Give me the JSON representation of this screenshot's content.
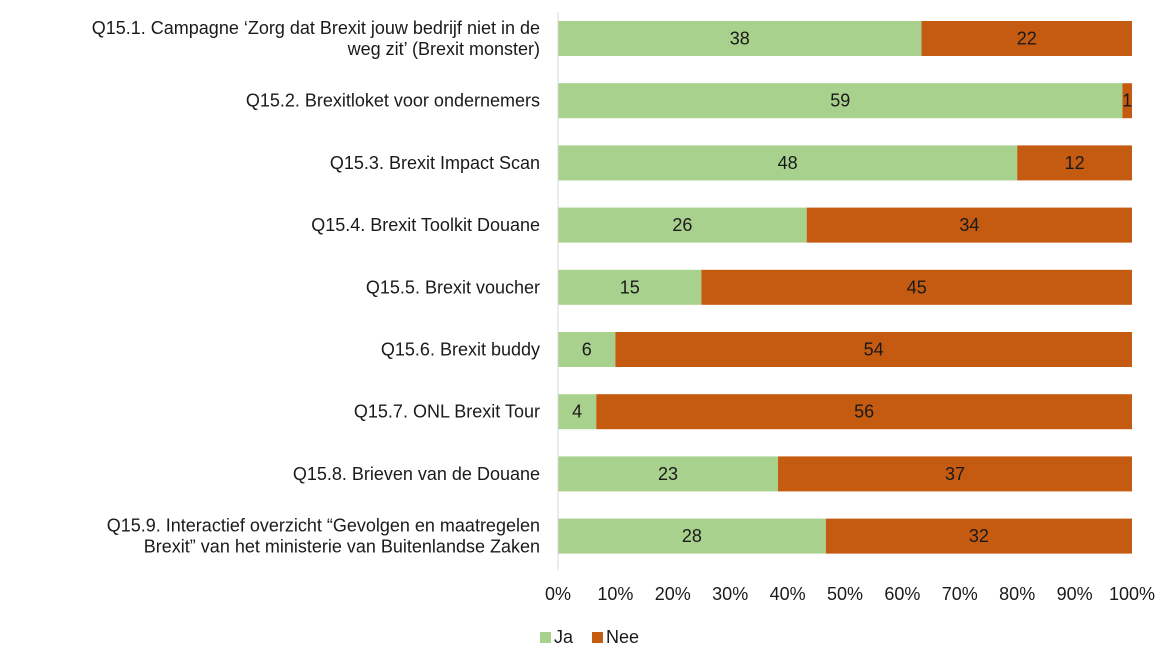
{
  "chart_data": {
    "type": "bar",
    "orientation": "horizontal",
    "stacked": "percent",
    "categories": [
      [
        "Q15.1. Campagne ‘Zorg dat Brexit jouw bedrijf niet in de",
        "weg zit’ (Brexit monster)"
      ],
      [
        "Q15.2. Brexitloket voor ondernemers"
      ],
      [
        "Q15.3. Brexit Impact Scan"
      ],
      [
        "Q15.4. Brexit Toolkit Douane"
      ],
      [
        "Q15.5. Brexit voucher"
      ],
      [
        "Q15.6. Brexit buddy"
      ],
      [
        "Q15.7. ONL Brexit Tour"
      ],
      [
        "Q15.8. Brieven van de Douane"
      ],
      [
        "Q15.9. Interactief overzicht “Gevolgen en maatregelen",
        "Brexit” van het ministerie van Buitenlandse Zaken"
      ]
    ],
    "series": [
      {
        "name": "Ja",
        "color": "#a9d18e",
        "values": [
          38,
          59,
          48,
          26,
          15,
          6,
          4,
          23,
          28
        ]
      },
      {
        "name": "Nee",
        "color": "#c55a11",
        "values": [
          22,
          1,
          12,
          34,
          45,
          54,
          56,
          37,
          32
        ]
      }
    ],
    "xticks": [
      "0%",
      "10%",
      "20%",
      "30%",
      "40%",
      "50%",
      "60%",
      "70%",
      "80%",
      "90%",
      "100%"
    ],
    "xlim": [
      0,
      100
    ],
    "grid": false,
    "legend_position": "bottom"
  }
}
